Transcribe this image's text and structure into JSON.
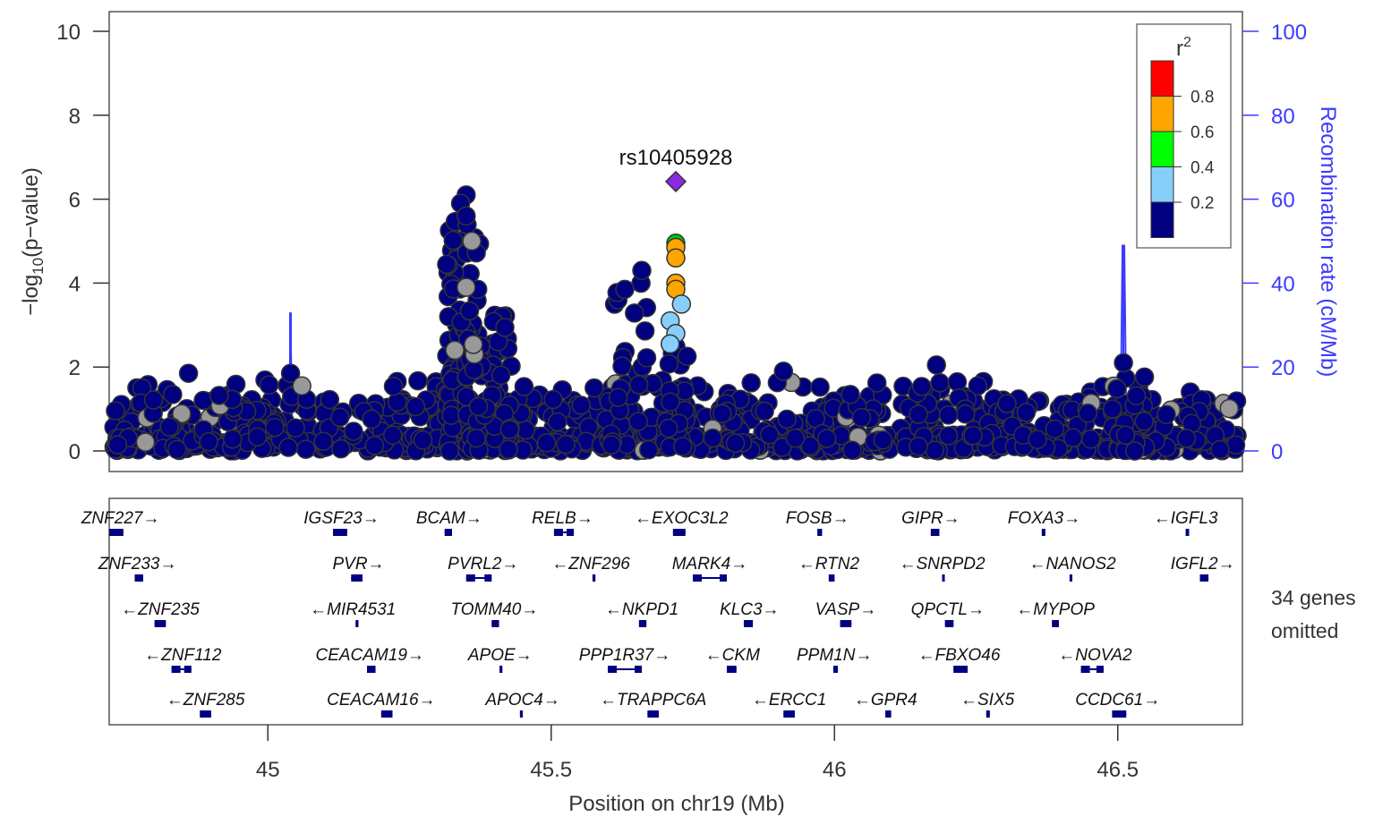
{
  "chart_data": {
    "type": "scatter",
    "title": "",
    "lead_snp": {
      "label": "rs10405928",
      "x": 45.72,
      "y": 6.42
    },
    "xlabel": "Position on chr19 (Mb)",
    "ylabel_left": "−log10(p−value)",
    "ylabel_left_main": "−log",
    "ylabel_left_sub": "10",
    "ylabel_left_tail": "(p−value)",
    "ylabel_right": "Recombination rate (cM/Mb)",
    "xlim": [
      44.72,
      46.72
    ],
    "ylim_left": [
      0,
      10
    ],
    "ylim_right": [
      0,
      100
    ],
    "x_ticks": [
      "45",
      "45.5",
      "46",
      "46.5"
    ],
    "x_tick_values": [
      45,
      45.5,
      46,
      46.5
    ],
    "y_ticks_left": [
      "0",
      "2",
      "4",
      "6",
      "8",
      "10"
    ],
    "y_ticks_right": [
      "0",
      "20",
      "40",
      "60",
      "80",
      "100"
    ],
    "legend": {
      "title": "r",
      "title_sup": "2",
      "ticks": [
        "0.2",
        "0.4",
        "0.6",
        "0.8"
      ],
      "colors": [
        "#000080",
        "#87cefa",
        "#00ff00",
        "#ffa500",
        "#ff0000"
      ]
    },
    "colors": {
      "low_ld": "#000080",
      "no_ld": "#999999",
      "ld_02_04": "#87cefa",
      "ld_04_06": "#00c800",
      "ld_06_08": "#ffa500",
      "lead": "#8a2be2",
      "recomb": "#3b3bff"
    },
    "recombination_peaks": [
      {
        "x": 45.04,
        "rate": 33
      },
      {
        "x": 46.51,
        "rate": 49
      },
      {
        "x": 45.52,
        "rate": 7
      },
      {
        "x": 44.89,
        "rate": 6
      },
      {
        "x": 45.32,
        "rate": 6
      }
    ],
    "key_points": [
      {
        "x": 45.72,
        "y": 4.95,
        "r2": "0.4-0.6"
      },
      {
        "x": 45.72,
        "y": 4.85,
        "r2": "0.6-0.8"
      },
      {
        "x": 45.72,
        "y": 4.6,
        "r2": "0.6-0.8"
      },
      {
        "x": 45.72,
        "y": 4.0,
        "r2": "0.6-0.8"
      },
      {
        "x": 45.72,
        "y": 3.85,
        "r2": "0.6-0.8"
      },
      {
        "x": 45.73,
        "y": 3.5,
        "r2": "0.2-0.4"
      },
      {
        "x": 45.71,
        "y": 3.1,
        "r2": "0.2-0.4"
      },
      {
        "x": 45.72,
        "y": 2.8,
        "r2": "0.2-0.4"
      },
      {
        "x": 45.71,
        "y": 2.55,
        "r2": "0.2-0.4"
      },
      {
        "x": 45.35,
        "y": 6.1,
        "r2": "0-0.2"
      },
      {
        "x": 45.34,
        "y": 5.9,
        "r2": "0-0.2"
      },
      {
        "x": 45.35,
        "y": 5.6,
        "r2": "0-0.2"
      },
      {
        "x": 45.36,
        "y": 5.0,
        "r2": "no-ld"
      },
      {
        "x": 45.35,
        "y": 3.9,
        "r2": "no-ld"
      },
      {
        "x": 45.33,
        "y": 2.4,
        "r2": "no-ld"
      },
      {
        "x": 45.66,
        "y": 4.3,
        "r2": "0-0.2"
      },
      {
        "x": 45.63,
        "y": 3.85,
        "r2": "0-0.2"
      },
      {
        "x": 44.86,
        "y": 1.85,
        "r2": "0-0.2"
      },
      {
        "x": 45.04,
        "y": 1.85,
        "r2": "0-0.2"
      },
      {
        "x": 45.06,
        "y": 1.55,
        "r2": "no-ld"
      },
      {
        "x": 46.51,
        "y": 2.1,
        "r2": "0-0.2"
      },
      {
        "x": 45.91,
        "y": 1.9,
        "r2": "0-0.2"
      },
      {
        "x": 46.18,
        "y": 2.05,
        "r2": "0-0.2"
      }
    ],
    "genes": [
      {
        "name": "ZNF227",
        "dir": "+",
        "row": 0,
        "x": 44.74,
        "start": 44.72,
        "end": 44.745
      },
      {
        "name": "IGSF23",
        "dir": "+",
        "row": 0,
        "x": 45.13,
        "start": 45.115,
        "end": 45.14
      },
      {
        "name": "BCAM",
        "dir": "+",
        "row": 0,
        "x": 45.32,
        "start": 45.312,
        "end": 45.325
      },
      {
        "name": "RELB",
        "dir": "+",
        "row": 0,
        "x": 45.52,
        "start": 45.505,
        "end": 45.54
      },
      {
        "name": "EXOC3L2",
        "dir": "-",
        "row": 0,
        "x": 45.73,
        "start": 45.715,
        "end": 45.737
      },
      {
        "name": "FOSB",
        "dir": "+",
        "row": 0,
        "x": 45.97,
        "start": 45.97,
        "end": 45.978
      },
      {
        "name": "GIPR",
        "dir": "+",
        "row": 0,
        "x": 46.17,
        "start": 46.17,
        "end": 46.185
      },
      {
        "name": "FOXA3",
        "dir": "+",
        "row": 0,
        "x": 46.37,
        "start": 46.366,
        "end": 46.372
      },
      {
        "name": "IGFL3",
        "dir": "-",
        "row": 0,
        "x": 46.62,
        "start": 46.62,
        "end": 46.626
      },
      {
        "name": "ZNF233",
        "dir": "+",
        "row": 1,
        "x": 44.77,
        "start": 44.765,
        "end": 44.78
      },
      {
        "name": "PVR",
        "dir": "+",
        "row": 1,
        "x": 45.16,
        "start": 45.147,
        "end": 45.167
      },
      {
        "name": "PVRL2",
        "dir": "+",
        "row": 1,
        "x": 45.38,
        "start": 45.35,
        "end": 45.395
      },
      {
        "name": "ZNF296",
        "dir": "-",
        "row": 1,
        "x": 45.57,
        "start": 45.573,
        "end": 45.578
      },
      {
        "name": "MARK4",
        "dir": "+",
        "row": 1,
        "x": 45.78,
        "start": 45.75,
        "end": 45.81
      },
      {
        "name": "RTN2",
        "dir": "-",
        "row": 1,
        "x": 45.99,
        "start": 45.99,
        "end": 46.0
      },
      {
        "name": "SNRPD2",
        "dir": "-",
        "row": 1,
        "x": 46.19,
        "start": 46.19,
        "end": 46.193
      },
      {
        "name": "NANOS2",
        "dir": "-",
        "row": 1,
        "x": 46.42,
        "start": 46.415,
        "end": 46.418
      },
      {
        "name": "IGFL2",
        "dir": "+",
        "row": 1,
        "x": 46.65,
        "start": 46.645,
        "end": 46.66
      },
      {
        "name": "ZNF235",
        "dir": "-",
        "row": 2,
        "x": 44.81,
        "start": 44.8,
        "end": 44.82
      },
      {
        "name": "MIR4531",
        "dir": "-",
        "row": 2,
        "x": 45.15,
        "start": 45.155,
        "end": 45.157
      },
      {
        "name": "TOMM40",
        "dir": "+",
        "row": 2,
        "x": 45.4,
        "start": 45.395,
        "end": 45.408
      },
      {
        "name": "NKPD1",
        "dir": "-",
        "row": 2,
        "x": 45.66,
        "start": 45.655,
        "end": 45.668
      },
      {
        "name": "KLC3",
        "dir": "+",
        "row": 2,
        "x": 45.85,
        "start": 45.84,
        "end": 45.856
      },
      {
        "name": "VASP",
        "dir": "+",
        "row": 2,
        "x": 46.02,
        "start": 46.01,
        "end": 46.03
      },
      {
        "name": "QPCTL",
        "dir": "+",
        "row": 2,
        "x": 46.2,
        "start": 46.195,
        "end": 46.21
      },
      {
        "name": "MYPOP",
        "dir": "-",
        "row": 2,
        "x": 46.39,
        "start": 46.384,
        "end": 46.396
      },
      {
        "name": "ZNF112",
        "dir": "-",
        "row": 3,
        "x": 44.85,
        "start": 44.83,
        "end": 44.865
      },
      {
        "name": "CEACAM19",
        "dir": "+",
        "row": 3,
        "x": 45.18,
        "start": 45.175,
        "end": 45.19
      },
      {
        "name": "APOE",
        "dir": "+",
        "row": 3,
        "x": 45.41,
        "start": 45.409,
        "end": 45.413
      },
      {
        "name": "PPP1R37",
        "dir": "+",
        "row": 3,
        "x": 45.63,
        "start": 45.6,
        "end": 45.66
      },
      {
        "name": "CKM",
        "dir": "-",
        "row": 3,
        "x": 45.82,
        "start": 45.81,
        "end": 45.827
      },
      {
        "name": "PPM1N",
        "dir": "+",
        "row": 3,
        "x": 46.0,
        "start": 45.998,
        "end": 46.006
      },
      {
        "name": "FBXO46",
        "dir": "-",
        "row": 3,
        "x": 46.22,
        "start": 46.21,
        "end": 46.235
      },
      {
        "name": "NOVA2",
        "dir": "-",
        "row": 3,
        "x": 46.46,
        "start": 46.435,
        "end": 46.475
      },
      {
        "name": "ZNF285",
        "dir": "-",
        "row": 4,
        "x": 44.89,
        "start": 44.88,
        "end": 44.9
      },
      {
        "name": "CEACAM16",
        "dir": "+",
        "row": 4,
        "x": 45.2,
        "start": 45.2,
        "end": 45.22
      },
      {
        "name": "APOC4",
        "dir": "+",
        "row": 4,
        "x": 45.45,
        "start": 45.445,
        "end": 45.448
      },
      {
        "name": "TRAPPC6A",
        "dir": "-",
        "row": 4,
        "x": 45.68,
        "start": 45.67,
        "end": 45.69
      },
      {
        "name": "ERCC1",
        "dir": "-",
        "row": 4,
        "x": 45.92,
        "start": 45.91,
        "end": 45.93
      },
      {
        "name": "GPR4",
        "dir": "-",
        "row": 4,
        "x": 46.09,
        "start": 46.09,
        "end": 46.1
      },
      {
        "name": "SIX5",
        "dir": "-",
        "row": 4,
        "x": 46.27,
        "start": 46.268,
        "end": 46.274
      },
      {
        "name": "CCDC61",
        "dir": "+",
        "row": 4,
        "x": 46.5,
        "start": 46.49,
        "end": 46.515
      }
    ],
    "omitted_note_line1": "34 genes",
    "omitted_note_line2": "omitted"
  }
}
